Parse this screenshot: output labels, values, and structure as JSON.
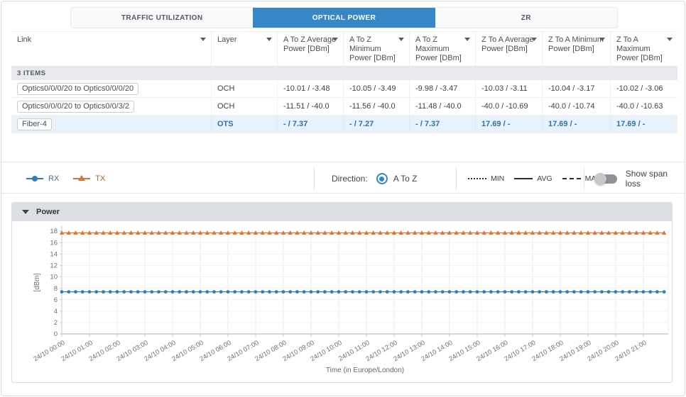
{
  "tabs": [
    {
      "label": "TRAFFIC UTILIZATION",
      "active": false
    },
    {
      "label": "OPTICAL POWER",
      "active": true
    },
    {
      "label": "ZR",
      "active": false
    }
  ],
  "table": {
    "count_label": "3 ITEMS",
    "columns": [
      {
        "label": "Link",
        "label2": ""
      },
      {
        "label": "Layer",
        "label2": ""
      },
      {
        "label": "A To Z Average",
        "label2": "Power [DBm]"
      },
      {
        "label": "A To Z Minimum",
        "label2": "Power [DBm]"
      },
      {
        "label": "A To Z Maximum",
        "label2": "Power [DBm]"
      },
      {
        "label": "Z To A Average",
        "label2": "Power [DBm]"
      },
      {
        "label": "Z To A Minimum",
        "label2": "Power [DBm]"
      },
      {
        "label": "Z To A Maximum",
        "label2": "Power [DBm]"
      }
    ],
    "rows": [
      {
        "link": "Optics0/0/0/20 to Optics0/0/0/20",
        "layer": "OCH",
        "values": [
          "-10.01 / -3.48",
          "-10.05 / -3.49",
          "-9.98 / -3.47",
          "-10.03 / -3.11",
          "-10.04 / -3.17",
          "-10.02 / -3.06"
        ],
        "selected": false
      },
      {
        "link": "Optics0/0/0/20 to Optics0/0/3/2",
        "layer": "OCH",
        "values": [
          "-11.51 / -40.0",
          "-11.56 / -40.0",
          "-11.48 / -40.0",
          "-40.0 / -10.69",
          "-40.0 / -10.74",
          "-40.0 / -10.63"
        ],
        "selected": false
      },
      {
        "link": "Fiber-4",
        "layer": "OTS",
        "values": [
          "- / 7.37",
          "- / 7.27",
          "- / 7.37",
          "17.69 / -",
          "17.69 / -",
          "17.69 / -"
        ],
        "selected": true
      }
    ]
  },
  "legend": {
    "series": [
      {
        "name": "RX",
        "color": "#2e7dbe",
        "marker": "circle"
      },
      {
        "name": "TX",
        "color": "#d9742f",
        "marker": "triangle"
      }
    ],
    "direction_label": "Direction:",
    "direction_value": "A To Z",
    "direction_selected": true,
    "stat_labels": [
      "MIN",
      "AVG",
      "MAX"
    ],
    "toggle_label": "Show span loss",
    "toggle_on": false
  },
  "panel": {
    "title": "Power"
  },
  "chart_data": {
    "type": "line",
    "title": "Power",
    "xlabel": "Time (in Europe/London)",
    "ylabel": "[dBm]",
    "ylim": [
      0,
      18
    ],
    "ytick_step": 2,
    "grid": true,
    "x_tick_labels": [
      "24/10 00:00",
      "24/10 01:00",
      "24/10 02:00",
      "24/10 03:00",
      "24/10 04:00",
      "24/10 05:00",
      "24/10 06:00",
      "24/10 07:00",
      "24/10 08:00",
      "24/10 09:00",
      "24/10 10:00",
      "24/10 11:00",
      "24/10 12:00",
      "24/10 13:00",
      "24/10 14:00",
      "24/10 15:00",
      "24/10 16:00",
      "24/10 17:00",
      "24/10 18:00",
      "24/10 19:00",
      "24/10 20:00",
      "24/10 21:00"
    ],
    "x_domain_hours": 21.9,
    "series": [
      {
        "name": "RX",
        "color": "#2e7dbe",
        "marker": "circle",
        "constant_value": 7.37,
        "start_hour": 0,
        "end_hour": 21.75,
        "interval_hours": 0.25
      },
      {
        "name": "TX",
        "color": "#d9742f",
        "marker": "triangle",
        "constant_value": 17.69,
        "start_hour": 0,
        "end_hour": 21.75,
        "interval_hours": 0.25
      }
    ]
  }
}
